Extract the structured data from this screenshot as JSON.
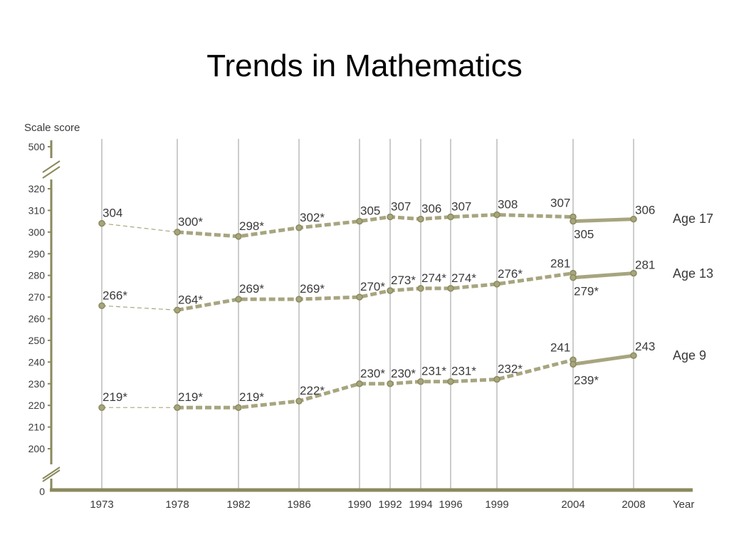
{
  "title": "Trends in Mathematics",
  "chart_data": {
    "type": "line",
    "ylabel": "Scale score",
    "xlabel": "Year",
    "x": [
      "1973",
      "1978",
      "1982",
      "1986",
      "1990",
      "1992",
      "1994",
      "1996",
      "1999",
      "2004",
      "2008"
    ],
    "ylim": [
      200,
      320
    ],
    "yticks": [
      "200",
      "210",
      "220",
      "230",
      "240",
      "250",
      "260",
      "270",
      "280",
      "290",
      "300",
      "310",
      "320"
    ],
    "axis_break_labels": [
      "0",
      "500"
    ],
    "grid": "vertical lines at each year",
    "series": [
      {
        "name": "Age 17",
        "points": [
          {
            "x": "1973",
            "y": 304,
            "label": "304"
          },
          {
            "x": "1978",
            "y": 300,
            "label": "300*"
          },
          {
            "x": "1982",
            "y": 298,
            "label": "298*"
          },
          {
            "x": "1986",
            "y": 302,
            "label": "302*"
          },
          {
            "x": "1990",
            "y": 305,
            "label": "305"
          },
          {
            "x": "1992",
            "y": 307,
            "label": "307"
          },
          {
            "x": "1994",
            "y": 306,
            "label": "306"
          },
          {
            "x": "1996",
            "y": 307,
            "label": "307"
          },
          {
            "x": "1999",
            "y": 308,
            "label": "308"
          },
          {
            "x": "2004",
            "y": 307,
            "label": "307"
          }
        ],
        "revised": [
          {
            "x": "2004",
            "y": 305,
            "label": "305"
          },
          {
            "x": "2008",
            "y": 306,
            "label": "306"
          }
        ]
      },
      {
        "name": "Age 13",
        "points": [
          {
            "x": "1973",
            "y": 266,
            "label": "266*"
          },
          {
            "x": "1978",
            "y": 264,
            "label": "264*"
          },
          {
            "x": "1982",
            "y": 269,
            "label": "269*"
          },
          {
            "x": "1986",
            "y": 269,
            "label": "269*"
          },
          {
            "x": "1990",
            "y": 270,
            "label": "270*"
          },
          {
            "x": "1992",
            "y": 273,
            "label": "273*"
          },
          {
            "x": "1994",
            "y": 274,
            "label": "274*"
          },
          {
            "x": "1996",
            "y": 274,
            "label": "274*"
          },
          {
            "x": "1999",
            "y": 276,
            "label": "276*"
          },
          {
            "x": "2004",
            "y": 281,
            "label": "281"
          }
        ],
        "revised": [
          {
            "x": "2004",
            "y": 279,
            "label": "279*"
          },
          {
            "x": "2008",
            "y": 281,
            "label": "281"
          }
        ]
      },
      {
        "name": "Age 9",
        "points": [
          {
            "x": "1973",
            "y": 219,
            "label": "219*"
          },
          {
            "x": "1978",
            "y": 219,
            "label": "219*"
          },
          {
            "x": "1982",
            "y": 219,
            "label": "219*"
          },
          {
            "x": "1986",
            "y": 222,
            "label": "222*"
          },
          {
            "x": "1990",
            "y": 230,
            "label": "230*"
          },
          {
            "x": "1992",
            "y": 230,
            "label": "230*"
          },
          {
            "x": "1994",
            "y": 231,
            "label": "231*"
          },
          {
            "x": "1996",
            "y": 231,
            "label": "231*"
          },
          {
            "x": "1999",
            "y": 232,
            "label": "232*"
          },
          {
            "x": "2004",
            "y": 241,
            "label": "241"
          }
        ],
        "revised": [
          {
            "x": "2004",
            "y": 239,
            "label": "239*"
          },
          {
            "x": "2008",
            "y": 243,
            "label": "243"
          }
        ]
      }
    ],
    "colors": {
      "line": "#a7a57f",
      "marker": "#8a8a5c",
      "axis": "#8a8a5c",
      "grid": "#9a9a9a",
      "text": "#3a3a3a"
    }
  }
}
